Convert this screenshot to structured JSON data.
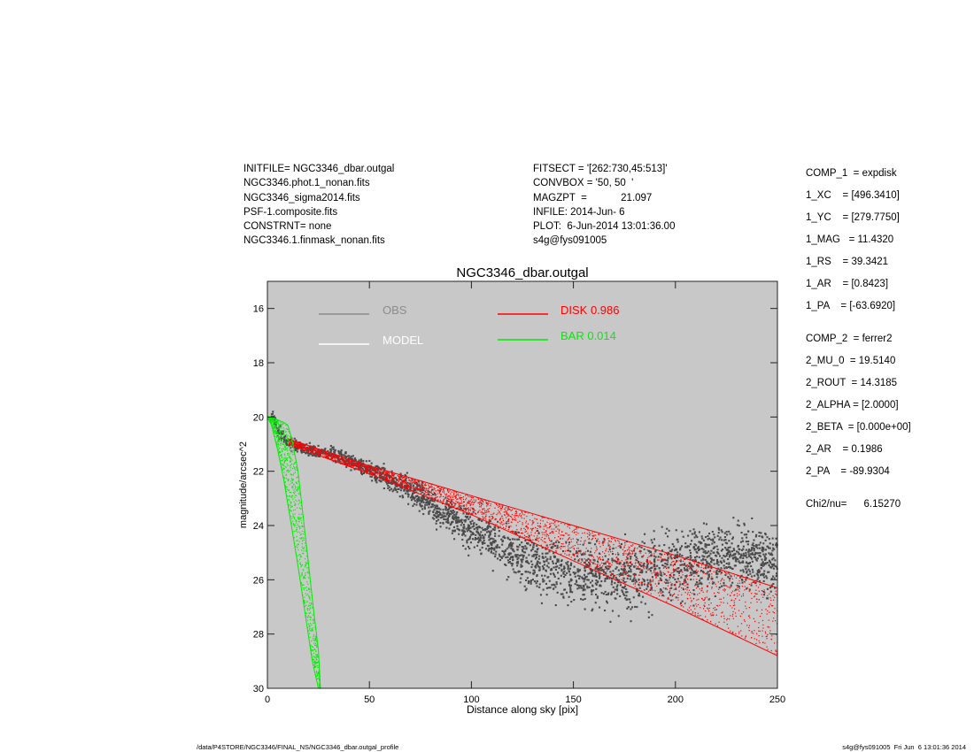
{
  "header": {
    "left": [
      "INITFILE= NGC3346_dbar.outgal",
      "NGC3346.phot.1_nonan.fits",
      "NGC3346_sigma2014.fits",
      "PSF-1.composite.fits",
      "CONSTRNT= none",
      "NGC3346.1.finmask_nonan.fits"
    ],
    "middle": [
      "FITSECT = '[262:730,45:513]'",
      "CONVBOX = '50, 50  '",
      "MAGZPT  =            21.097",
      "INFILE: 2014-Jun- 6",
      "PLOT:  6-Jun-2014 13:01:36.00",
      "s4g@fys091005"
    ]
  },
  "parameters": {
    "comp1": [
      "COMP_1  = expdisk",
      "1_XC    = [496.3410]",
      "1_YC    = [279.7750]",
      "1_MAG   = 11.4320",
      "1_RS    = 39.3421",
      "1_AR    = [0.8423]",
      "1_PA    = [-63.6920]"
    ],
    "comp2": [
      "COMP_2  = ferrer2",
      "2_MU_0  = 19.5140",
      "2_ROUT  = 14.3185",
      "2_ALPHA = [2.0000]",
      "2_BETA  = [0.000e+00]",
      "2_AR    = 0.1986",
      "2_PA    = -89.9304"
    ],
    "chi2": "Chi2/nu=      6.15270"
  },
  "footer": {
    "left": "/data/P4STORE/NGC3346/FINAL_NS/NGC3346_dbar.outgal_profile",
    "right": "s4g@fys091005  Fri Jun  6 13:01:36 2014"
  },
  "colors": {
    "plot_bg": "#c8c8c8",
    "obs": "#4a4a4a",
    "obs_legend": "#8c8c8c",
    "model": "#ffffff",
    "disk": "#ff0000",
    "bar": "#00ee00"
  },
  "chart_data": {
    "type": "scatter",
    "title": "NGC3346_dbar.outgal",
    "xlabel": "Distance along sky [pix]",
    "ylabel": "magnitude/arcsec^2",
    "xlim": [
      0,
      250
    ],
    "ylim": [
      15,
      30
    ],
    "y_inverted": true,
    "x_ticks": [
      0,
      50,
      100,
      150,
      200,
      250
    ],
    "y_ticks": [
      16,
      18,
      20,
      22,
      24,
      26,
      28,
      30
    ],
    "grid": false,
    "legend": [
      {
        "name": "OBS",
        "color": "#8c8c8c"
      },
      {
        "name": "MODEL",
        "color": "#ffffff"
      },
      {
        "name": "DISK  0.986",
        "color": "#ff0000"
      },
      {
        "name": "BAR  0.014",
        "color": "#00ee00"
      }
    ],
    "series": [
      {
        "name": "OBS",
        "kind": "points",
        "color": "#4a4a4a",
        "x": [
          2,
          5,
          10,
          15,
          20,
          25,
          30,
          40,
          50,
          60,
          70,
          80,
          90,
          100,
          110,
          120,
          130,
          140,
          150,
          160,
          170,
          180,
          190,
          200,
          210,
          220,
          230,
          240,
          250
        ],
        "y": [
          19.9,
          20.5,
          20.9,
          21.1,
          21.2,
          21.3,
          21.3,
          21.6,
          21.9,
          22.3,
          22.7,
          23.2,
          23.7,
          24.2,
          24.6,
          25.0,
          25.3,
          25.6,
          25.8,
          25.9,
          25.9,
          25.8,
          25.6,
          25.5,
          25.3,
          25.2,
          25.2,
          25.3,
          25.3
        ],
        "scatter": [
          0.15,
          0.15,
          0.15,
          0.15,
          0.15,
          0.15,
          0.15,
          0.2,
          0.2,
          0.25,
          0.3,
          0.35,
          0.4,
          0.5,
          0.55,
          0.6,
          0.65,
          0.7,
          0.75,
          0.8,
          0.8,
          0.8,
          0.8,
          0.8,
          0.8,
          0.8,
          0.8,
          0.8,
          0.8
        ]
      },
      {
        "name": "DISK  0.986",
        "kind": "band",
        "color": "#ff0000",
        "x": [
          10,
          50,
          100,
          150,
          200,
          250
        ],
        "y_min": [
          20.8,
          21.8,
          22.9,
          24.0,
          25.1,
          26.3
        ],
        "y_max": [
          21.0,
          22.1,
          23.6,
          25.3,
          27.0,
          28.8
        ]
      },
      {
        "name": "BAR  0.014",
        "kind": "band",
        "color": "#00ee00",
        "x": [
          0,
          2,
          5,
          8,
          10,
          12,
          15,
          18,
          20,
          22,
          25,
          26
        ],
        "y_min": [
          20.0,
          20.0,
          20.1,
          20.2,
          20.3,
          20.8,
          22.0,
          24.0,
          25.3,
          26.7,
          28.6,
          30.0
        ],
        "y_max": [
          20.0,
          20.3,
          21.2,
          22.3,
          23.2,
          24.1,
          25.5,
          27.0,
          28.0,
          29.0,
          30.0,
          30.0
        ]
      }
    ]
  }
}
